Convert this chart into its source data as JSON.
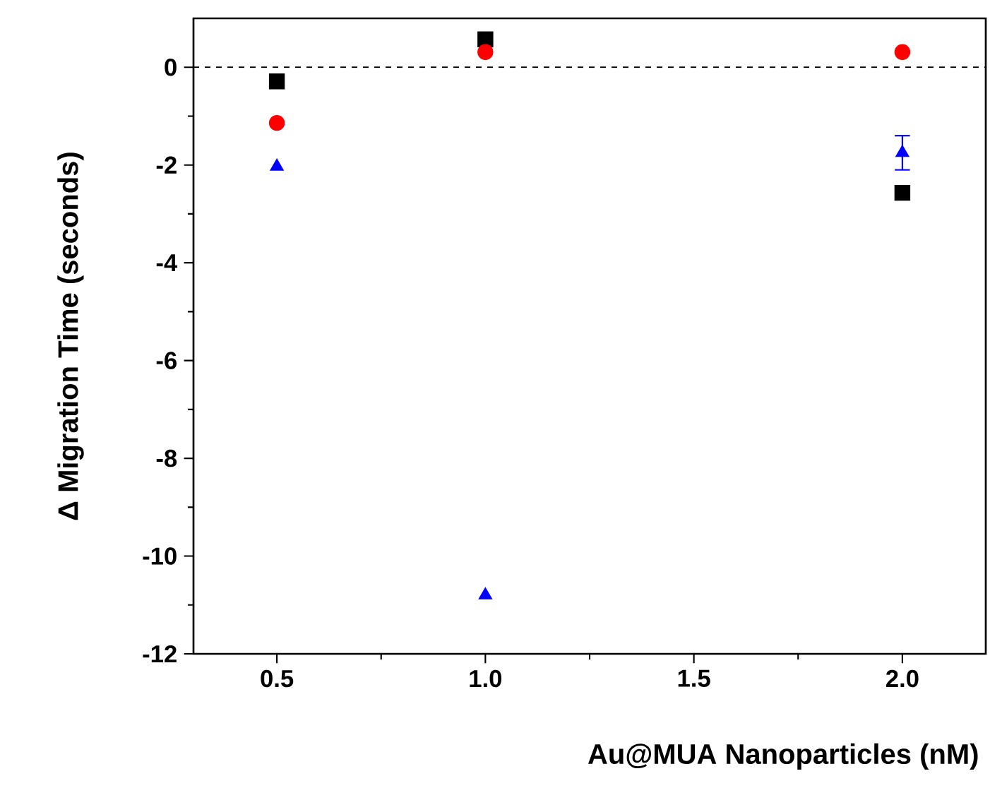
{
  "chart_data": {
    "type": "scatter",
    "xlabel": "Au@MUA Nanoparticles (nM)",
    "ylabel": "Δ Migration Time (seconds)",
    "x": [
      0.5,
      1.0,
      2.0
    ],
    "series": [
      {
        "color": "#000000",
        "marker": "square",
        "values": [
          -0.29,
          0.57,
          -2.57
        ]
      },
      {
        "color": "#ff0000",
        "marker": "circle",
        "values": [
          -1.14,
          0.31,
          0.31
        ]
      },
      {
        "color": "#0000ff",
        "marker": "triangle",
        "values": [
          -2.03,
          -10.8,
          -1.75
        ],
        "errors": [
          null,
          null,
          0.35
        ]
      }
    ],
    "xlim": [
      0.3,
      2.2
    ],
    "ylim": [
      -12,
      1
    ],
    "xticks": [
      {
        "value": 0.5,
        "label": "0.5"
      },
      {
        "value": 1.0,
        "label": "1.0"
      },
      {
        "value": 1.5,
        "label": "1.5"
      },
      {
        "value": 2.0,
        "label": "2.0"
      }
    ],
    "yticks": [
      -12,
      -10,
      -8,
      -6,
      -4,
      -2,
      0
    ],
    "ref_lines": [
      {
        "axis": "y",
        "value": 0,
        "line_style": "dashed",
        "color": "#000000"
      }
    ]
  }
}
